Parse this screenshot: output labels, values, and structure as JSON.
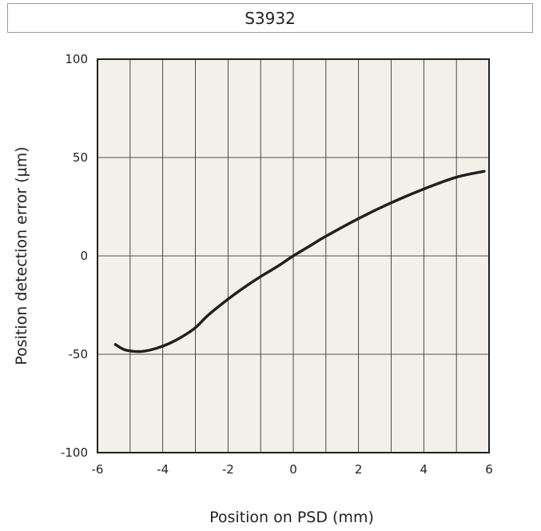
{
  "title": "S3932",
  "chart_data": {
    "type": "line",
    "title": "S3932",
    "xlabel": "Position on PSD (mm)",
    "ylabel": "Position detection error (µm)",
    "xlim": [
      -6,
      6
    ],
    "ylim": [
      -100,
      100
    ],
    "x_ticks": [
      -6,
      -4,
      -2,
      0,
      2,
      4,
      6
    ],
    "y_ticks": [
      100,
      50,
      0,
      -50,
      -100
    ],
    "x_tick_labels": [
      "-6",
      "-4",
      "-2",
      "0",
      "2",
      "4",
      "6"
    ],
    "y_tick_labels": [
      "100",
      "50",
      "0",
      "-50",
      "-100"
    ],
    "grid": {
      "vertical_step": 1,
      "horizontal_step": 50
    },
    "plot_background": "#f2f0e8",
    "line_color": "#231f20",
    "series": [
      {
        "x": [
          -5.45,
          -5.2,
          -4.9,
          -4.6,
          -4.2,
          -3.8,
          -3.4,
          -3.0,
          -2.6,
          -2.0,
          -1.5,
          -1.0,
          -0.5,
          0.0,
          0.5,
          1.0,
          2.0,
          3.0,
          4.0,
          5.0,
          5.85
        ],
        "y": [
          -45,
          -47.5,
          -48.5,
          -48.5,
          -47,
          -44.5,
          -41,
          -36.5,
          -30,
          -22,
          -16,
          -10.5,
          -5.5,
          0,
          5,
          10,
          19,
          27,
          34,
          40,
          43
        ]
      }
    ]
  }
}
